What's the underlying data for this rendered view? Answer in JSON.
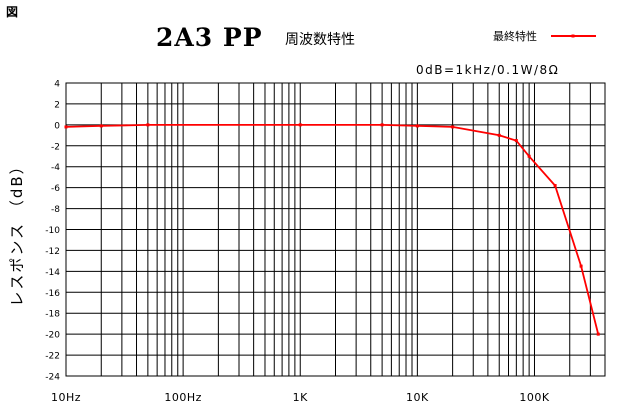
{
  "corner_label": "図",
  "chart_data": {
    "type": "line",
    "title": "2A3  PP",
    "subtitle": "周波数特性",
    "reference_note": "0dB=1kHz/0.1W/8Ω",
    "ylabel": "レスポンス （dB）",
    "xlabel": "",
    "xscale": "log",
    "xlim": [
      10,
      400000
    ],
    "ylim": [
      -24,
      4
    ],
    "y_ticks": [
      4,
      2,
      0,
      -2,
      -4,
      -6,
      -8,
      -10,
      -12,
      -14,
      -16,
      -18,
      -20,
      -22,
      -24
    ],
    "x_tick_labels": [
      {
        "value": 10,
        "label": "10Hz"
      },
      {
        "value": 100,
        "label": "100Hz"
      },
      {
        "value": 1000,
        "label": "1K"
      },
      {
        "value": 10000,
        "label": "10K"
      },
      {
        "value": 100000,
        "label": "100K"
      }
    ],
    "grid": true,
    "legend_position": "top-right",
    "series": [
      {
        "name": "最終特性",
        "color": "#ff0000",
        "x": [
          10,
          20,
          50,
          1000,
          5000,
          10000,
          20000,
          50000,
          70000,
          90000,
          150000,
          250000,
          350000
        ],
        "y": [
          -0.2,
          -0.1,
          0,
          0,
          0,
          -0.1,
          -0.2,
          -1,
          -1.5,
          -3,
          -5.8,
          -13.5,
          -20
        ]
      }
    ]
  }
}
